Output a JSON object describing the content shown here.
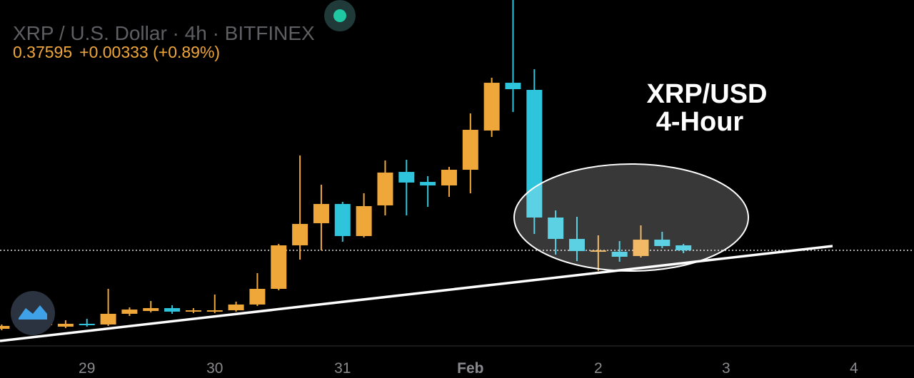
{
  "chart_data": {
    "type": "candlestick",
    "title": "XRP / U.S. Dollar · 4h · BITFINEX",
    "last_price": "0.37595",
    "change": "+0.00333 (+0.89%)",
    "annotation": [
      "XRP/USD",
      "4-Hour"
    ],
    "up_color": "#f0a73a",
    "down_color": "#2ec4dc",
    "x": [
      -0.6667,
      -0.5,
      -0.3333,
      -0.1667,
      0,
      0.1667,
      0.3333,
      0.5,
      0.6667,
      0.8333,
      1,
      1.1667,
      1.3333,
      1.5,
      1.6667,
      1.8333,
      2,
      2.1667,
      2.3333,
      2.5,
      2.6667,
      2.8333,
      3,
      3.1667,
      3.3333,
      3.5,
      3.6667,
      3.8333,
      4,
      4.1667,
      4.3333,
      4.5,
      4.6667
    ],
    "open": [
      0.2562,
      0.2595,
      0.2617,
      0.2595,
      0.2639,
      0.2628,
      0.2792,
      0.2835,
      0.2879,
      0.2825,
      0.2825,
      0.2846,
      0.2934,
      0.3174,
      0.3841,
      0.418,
      0.4475,
      0.3983,
      0.4453,
      0.4966,
      0.4813,
      0.4759,
      0.4999,
      0.56,
      0.6332,
      0.6223,
      0.4267,
      0.3939,
      0.3743,
      0.3743,
      0.3677,
      0.3928,
      0.3841
    ],
    "high": [
      0.2628,
      0.2661,
      0.2682,
      0.2693,
      0.2715,
      0.3174,
      0.289,
      0.2988,
      0.2923,
      0.2879,
      0.3087,
      0.2978,
      0.3415,
      0.3863,
      0.5218,
      0.477,
      0.4507,
      0.4639,
      0.5141,
      0.5152,
      0.4901,
      0.5043,
      0.5863,
      0.6409,
      0.76,
      0.654,
      0.4376,
      0.4278,
      0.3994,
      0.3906,
      0.4147,
      0.4049,
      0.3863
    ],
    "low": [
      0.254,
      0.2573,
      0.2584,
      0.2573,
      0.2595,
      0.2606,
      0.2759,
      0.2814,
      0.2792,
      0.2803,
      0.2803,
      0.2825,
      0.2912,
      0.3152,
      0.3622,
      0.3764,
      0.3896,
      0.3961,
      0.43,
      0.43,
      0.4431,
      0.4584,
      0.4639,
      0.5502,
      0.5884,
      0.4016,
      0.3699,
      0.36,
      0.3447,
      0.359,
      0.3655,
      0.3797,
      0.3721
    ],
    "close": [
      0.2606,
      0.2628,
      0.265,
      0.2639,
      0.2617,
      0.2792,
      0.2857,
      0.2879,
      0.2825,
      0.2846,
      0.2846,
      0.2934,
      0.3174,
      0.3841,
      0.4169,
      0.4475,
      0.3983,
      0.4442,
      0.4956,
      0.4803,
      0.4759,
      0.4999,
      0.5611,
      0.6332,
      0.6234,
      0.4267,
      0.3939,
      0.3753,
      0.3764,
      0.3666,
      0.3928,
      0.383,
      0.3764
    ],
    "xlim": [
      -0.68,
      6.47
    ],
    "ylim": [
      0.23,
      0.76
    ],
    "xticks": [
      {
        "value": 0,
        "label": "29"
      },
      {
        "value": 1,
        "label": "30"
      },
      {
        "value": 2,
        "label": "31"
      },
      {
        "value": 3,
        "label": "Feb"
      },
      {
        "value": 4,
        "label": "2"
      },
      {
        "value": 5,
        "label": "3"
      },
      {
        "value": 6,
        "label": "4"
      }
    ]
  }
}
